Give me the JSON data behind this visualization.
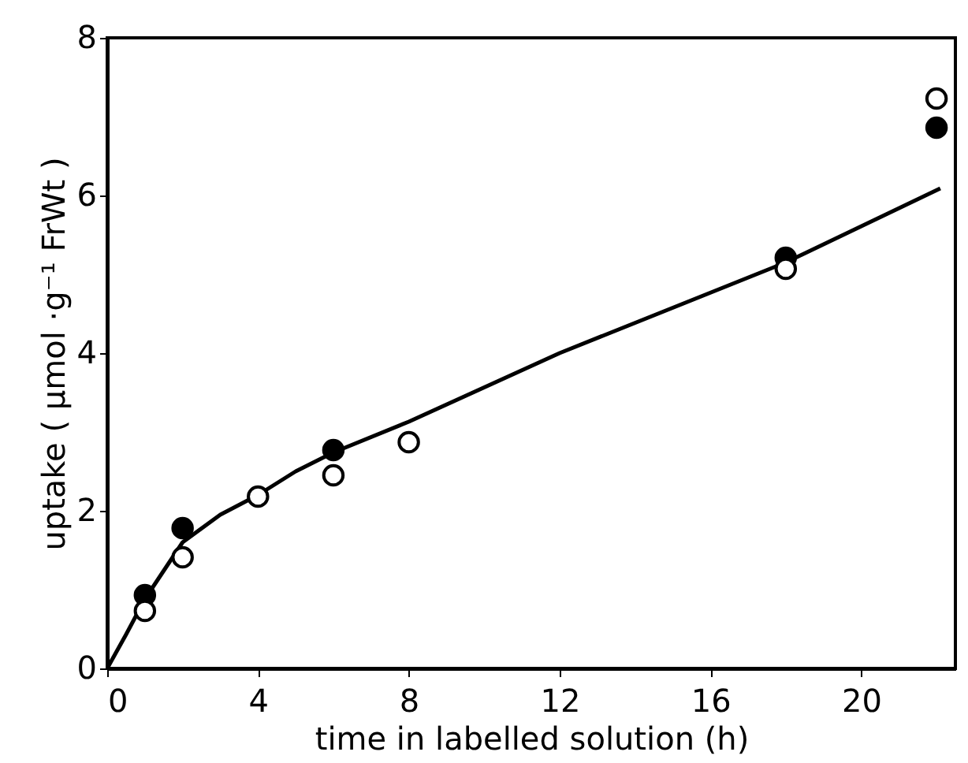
{
  "chart_data": {
    "type": "scatter",
    "xlabel": "time in labelled solution  (h)",
    "ylabel": "uptake ( µmol ·g⁻¹ FrWt )",
    "xlim": [
      0,
      22.5
    ],
    "xticks": [
      0,
      4,
      8,
      12,
      16,
      20
    ],
    "ylim": [
      0,
      8
    ],
    "yticks": [
      0,
      2,
      4,
      6,
      8
    ],
    "grid": false,
    "marker": "circle",
    "legend": false,
    "series": [
      {
        "type": "line",
        "marker": "none",
        "line_style": "solid",
        "color": "#000000",
        "x": [
          0,
          0.5,
          1,
          2,
          3,
          4,
          5,
          6,
          8,
          12,
          18,
          22.1
        ],
        "values": [
          0,
          0.43,
          0.88,
          1.6,
          1.95,
          2.2,
          2.5,
          2.74,
          3.13,
          4.0,
          5.15,
          6.09
        ]
      },
      {
        "color": "#000000",
        "x": [
          1,
          2,
          6,
          18,
          22
        ],
        "values": [
          0.93,
          1.78,
          2.77,
          5.21,
          6.86
        ]
      },
      {
        "color": "#ffffff",
        "x": [
          1,
          2,
          4,
          6,
          8,
          18,
          22
        ],
        "values": [
          0.73,
          1.41,
          2.18,
          2.45,
          2.87,
          5.07,
          7.23
        ]
      }
    ]
  }
}
